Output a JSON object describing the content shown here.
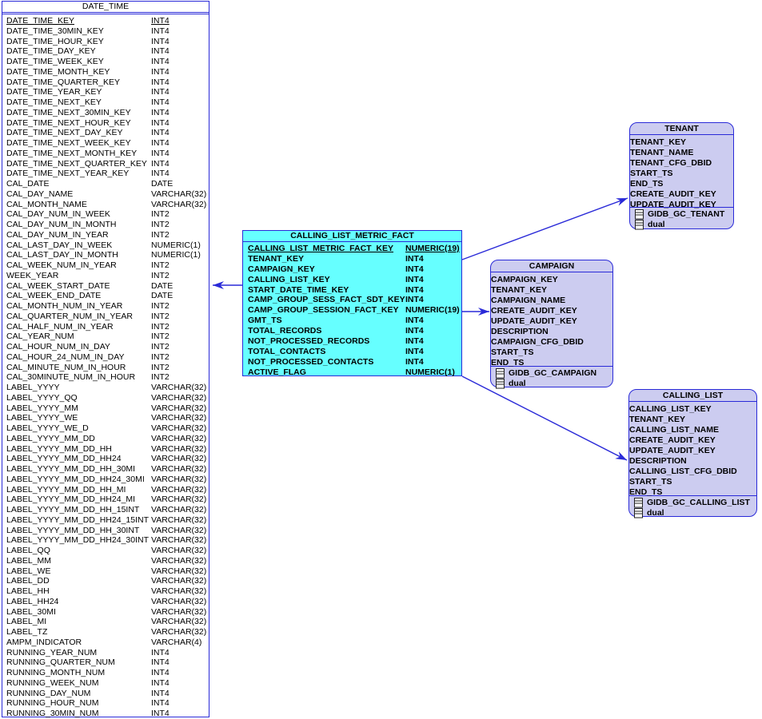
{
  "colors": {
    "connector": "#2a2ad8",
    "border": "#2a2ad8",
    "fact_fill": "#66ffff",
    "dimension_fill": "#ccccf0",
    "table_fill": "#ffffff"
  },
  "icons": {
    "footer_item_icon": "table-icon"
  },
  "entities": {
    "date_time": {
      "title": "DATE_TIME",
      "columns": [
        {
          "name": "DATE_TIME_KEY",
          "type": "INT4",
          "key": true
        },
        {
          "name": "DATE_TIME_30MIN_KEY",
          "type": "INT4"
        },
        {
          "name": "DATE_TIME_HOUR_KEY",
          "type": "INT4"
        },
        {
          "name": "DATE_TIME_DAY_KEY",
          "type": "INT4"
        },
        {
          "name": "DATE_TIME_WEEK_KEY",
          "type": "INT4"
        },
        {
          "name": "DATE_TIME_MONTH_KEY",
          "type": "INT4"
        },
        {
          "name": "DATE_TIME_QUARTER_KEY",
          "type": "INT4"
        },
        {
          "name": "DATE_TIME_YEAR_KEY",
          "type": "INT4"
        },
        {
          "name": "DATE_TIME_NEXT_KEY",
          "type": "INT4"
        },
        {
          "name": "DATE_TIME_NEXT_30MIN_KEY",
          "type": "INT4"
        },
        {
          "name": "DATE_TIME_NEXT_HOUR_KEY",
          "type": "INT4"
        },
        {
          "name": "DATE_TIME_NEXT_DAY_KEY",
          "type": "INT4"
        },
        {
          "name": "DATE_TIME_NEXT_WEEK_KEY",
          "type": "INT4"
        },
        {
          "name": "DATE_TIME_NEXT_MONTH_KEY",
          "type": "INT4"
        },
        {
          "name": "DATE_TIME_NEXT_QUARTER_KEY",
          "type": "INT4"
        },
        {
          "name": "DATE_TIME_NEXT_YEAR_KEY",
          "type": "INT4"
        },
        {
          "name": "CAL_DATE",
          "type": "DATE"
        },
        {
          "name": "CAL_DAY_NAME",
          "type": "VARCHAR(32)"
        },
        {
          "name": "CAL_MONTH_NAME",
          "type": "VARCHAR(32)"
        },
        {
          "name": "CAL_DAY_NUM_IN_WEEK",
          "type": "INT2"
        },
        {
          "name": "CAL_DAY_NUM_IN_MONTH",
          "type": "INT2"
        },
        {
          "name": "CAL_DAY_NUM_IN_YEAR",
          "type": "INT2"
        },
        {
          "name": "CAL_LAST_DAY_IN_WEEK",
          "type": "NUMERIC(1)"
        },
        {
          "name": "CAL_LAST_DAY_IN_MONTH",
          "type": "NUMERIC(1)"
        },
        {
          "name": "CAL_WEEK_NUM_IN_YEAR",
          "type": "INT2"
        },
        {
          "name": "WEEK_YEAR",
          "type": "INT2"
        },
        {
          "name": "CAL_WEEK_START_DATE",
          "type": "DATE"
        },
        {
          "name": "CAL_WEEK_END_DATE",
          "type": "DATE"
        },
        {
          "name": "CAL_MONTH_NUM_IN_YEAR",
          "type": "INT2"
        },
        {
          "name": "CAL_QUARTER_NUM_IN_YEAR",
          "type": "INT2"
        },
        {
          "name": "CAL_HALF_NUM_IN_YEAR",
          "type": "INT2"
        },
        {
          "name": "CAL_YEAR_NUM",
          "type": "INT2"
        },
        {
          "name": "CAL_HOUR_NUM_IN_DAY",
          "type": "INT2"
        },
        {
          "name": "CAL_HOUR_24_NUM_IN_DAY",
          "type": "INT2"
        },
        {
          "name": "CAL_MINUTE_NUM_IN_HOUR",
          "type": "INT2"
        },
        {
          "name": "CAL_30MINUTE_NUM_IN_HOUR",
          "type": "INT2"
        },
        {
          "name": "LABEL_YYYY",
          "type": "VARCHAR(32)"
        },
        {
          "name": "LABEL_YYYY_QQ",
          "type": "VARCHAR(32)"
        },
        {
          "name": "LABEL_YYYY_MM",
          "type": "VARCHAR(32)"
        },
        {
          "name": "LABEL_YYYY_WE",
          "type": "VARCHAR(32)"
        },
        {
          "name": "LABEL_YYYY_WE_D",
          "type": "VARCHAR(32)"
        },
        {
          "name": "LABEL_YYYY_MM_DD",
          "type": "VARCHAR(32)"
        },
        {
          "name": "LABEL_YYYY_MM_DD_HH",
          "type": "VARCHAR(32)"
        },
        {
          "name": "LABEL_YYYY_MM_DD_HH24",
          "type": "VARCHAR(32)"
        },
        {
          "name": "LABEL_YYYY_MM_DD_HH_30MI",
          "type": "VARCHAR(32)"
        },
        {
          "name": "LABEL_YYYY_MM_DD_HH24_30MI",
          "type": "VARCHAR(32)"
        },
        {
          "name": "LABEL_YYYY_MM_DD_HH_MI",
          "type": "VARCHAR(32)"
        },
        {
          "name": "LABEL_YYYY_MM_DD_HH24_MI",
          "type": "VARCHAR(32)"
        },
        {
          "name": "LABEL_YYYY_MM_DD_HH_15INT",
          "type": "VARCHAR(32)"
        },
        {
          "name": "LABEL_YYYY_MM_DD_HH24_15INT",
          "type": "VARCHAR(32)"
        },
        {
          "name": "LABEL_YYYY_MM_DD_HH_30INT",
          "type": "VARCHAR(32)"
        },
        {
          "name": "LABEL_YYYY_MM_DD_HH24_30INT",
          "type": "VARCHAR(32)"
        },
        {
          "name": "LABEL_QQ",
          "type": "VARCHAR(32)"
        },
        {
          "name": "LABEL_MM",
          "type": "VARCHAR(32)"
        },
        {
          "name": "LABEL_WE",
          "type": "VARCHAR(32)"
        },
        {
          "name": "LABEL_DD",
          "type": "VARCHAR(32)"
        },
        {
          "name": "LABEL_HH",
          "type": "VARCHAR(32)"
        },
        {
          "name": "LABEL_HH24",
          "type": "VARCHAR(32)"
        },
        {
          "name": "LABEL_30MI",
          "type": "VARCHAR(32)"
        },
        {
          "name": "LABEL_MI",
          "type": "VARCHAR(32)"
        },
        {
          "name": "LABEL_TZ",
          "type": "VARCHAR(32)"
        },
        {
          "name": "AMPM_INDICATOR",
          "type": "VARCHAR(4)"
        },
        {
          "name": "RUNNING_YEAR_NUM",
          "type": "INT4"
        },
        {
          "name": "RUNNING_QUARTER_NUM",
          "type": "INT4"
        },
        {
          "name": "RUNNING_MONTH_NUM",
          "type": "INT4"
        },
        {
          "name": "RUNNING_WEEK_NUM",
          "type": "INT4"
        },
        {
          "name": "RUNNING_DAY_NUM",
          "type": "INT4"
        },
        {
          "name": "RUNNING_HOUR_NUM",
          "type": "INT4"
        },
        {
          "name": "RUNNING_30MIN_NUM",
          "type": "INT4"
        }
      ]
    },
    "calling_list_metric_fact": {
      "title": "CALLING_LIST_METRIC_FACT",
      "columns": [
        {
          "name": "CALLING_LIST_METRIC_FACT_KEY",
          "type": "NUMERIC(19)",
          "key": true
        },
        {
          "name": "TENANT_KEY",
          "type": "INT4"
        },
        {
          "name": "CAMPAIGN_KEY",
          "type": "INT4"
        },
        {
          "name": "CALLING_LIST_KEY",
          "type": "INT4"
        },
        {
          "name": "START_DATE_TIME_KEY",
          "type": "INT4"
        },
        {
          "name": "CAMP_GROUP_SESS_FACT_SDT_KEY",
          "type": "INT4"
        },
        {
          "name": "CAMP_GROUP_SESSION_FACT_KEY",
          "type": "NUMERIC(19)"
        },
        {
          "name": "GMT_TS",
          "type": "INT4"
        },
        {
          "name": "TOTAL_RECORDS",
          "type": "INT4"
        },
        {
          "name": "NOT_PROCESSED_RECORDS",
          "type": "INT4"
        },
        {
          "name": "TOTAL_CONTACTS",
          "type": "INT4"
        },
        {
          "name": "NOT_PROCESSED_CONTACTS",
          "type": "INT4"
        },
        {
          "name": "ACTIVE_FLAG",
          "type": "NUMERIC(1)"
        }
      ]
    },
    "tenant": {
      "title": "TENANT",
      "columns": [
        {
          "name": "TENANT_KEY"
        },
        {
          "name": "TENANT_NAME"
        },
        {
          "name": "TENANT_CFG_DBID"
        },
        {
          "name": "START_TS"
        },
        {
          "name": "END_TS"
        },
        {
          "name": "CREATE_AUDIT_KEY"
        },
        {
          "name": "UPDATE_AUDIT_KEY"
        }
      ],
      "footer": [
        "GIDB_GC_TENANT",
        "dual"
      ]
    },
    "campaign": {
      "title": "CAMPAIGN",
      "columns": [
        {
          "name": "CAMPAIGN_KEY"
        },
        {
          "name": "TENANT_KEY"
        },
        {
          "name": "CAMPAIGN_NAME"
        },
        {
          "name": "CREATE_AUDIT_KEY"
        },
        {
          "name": "UPDATE_AUDIT_KEY"
        },
        {
          "name": "DESCRIPTION"
        },
        {
          "name": "CAMPAIGN_CFG_DBID"
        },
        {
          "name": "START_TS"
        },
        {
          "name": "END_TS"
        }
      ],
      "footer": [
        "GIDB_GC_CAMPAIGN",
        "dual"
      ]
    },
    "calling_list": {
      "title": "CALLING_LIST",
      "columns": [
        {
          "name": "CALLING_LIST_KEY"
        },
        {
          "name": "TENANT_KEY"
        },
        {
          "name": "CALLING_LIST_NAME"
        },
        {
          "name": "CREATE_AUDIT_KEY"
        },
        {
          "name": "UPDATE_AUDIT_KEY"
        },
        {
          "name": "DESCRIPTION"
        },
        {
          "name": "CALLING_LIST_CFG_DBID"
        },
        {
          "name": "START_TS"
        },
        {
          "name": "END_TS"
        }
      ],
      "footer": [
        "GIDB_GC_CALLING_LIST",
        "dual"
      ]
    }
  },
  "relationships": [
    {
      "from": "calling_list_metric_fact",
      "to": "date_time"
    },
    {
      "from": "calling_list_metric_fact",
      "to": "tenant"
    },
    {
      "from": "calling_list_metric_fact",
      "to": "campaign"
    },
    {
      "from": "calling_list_metric_fact",
      "to": "calling_list"
    }
  ]
}
